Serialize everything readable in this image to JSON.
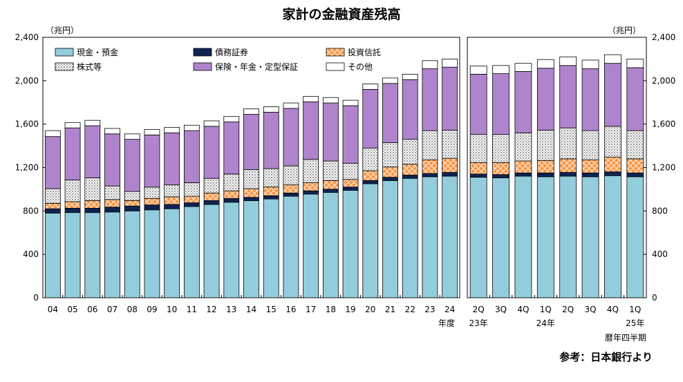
{
  "title": "家計の金融資産残高",
  "source": "参考：日本銀行より",
  "colors": {
    "cash": "#93cddd",
    "bonds": "#0f2454",
    "trusts": "#f79646",
    "stocks": "#d9d9d9",
    "insurance": "#b084cc",
    "other": "#ffffff"
  },
  "chart_data": [
    {
      "type": "bar",
      "stacked": true,
      "unit_label": "（兆円）",
      "axis_caption": "年度",
      "ylim": [
        0,
        2400
      ],
      "yticks": [
        "0",
        "400",
        "800",
        "1,200",
        "1,600",
        "2,000",
        "2,400"
      ],
      "categories": [
        "04",
        "05",
        "06",
        "07",
        "08",
        "09",
        "10",
        "11",
        "12",
        "13",
        "14",
        "15",
        "16",
        "17",
        "18",
        "19",
        "20",
        "21",
        "22",
        "23",
        "24"
      ],
      "series": [
        {
          "name": "現金・預金",
          "key": "cash",
          "values": [
            780,
            785,
            785,
            790,
            800,
            810,
            820,
            840,
            860,
            880,
            895,
            910,
            935,
            955,
            970,
            990,
            1050,
            1080,
            1100,
            1115,
            1120
          ]
        },
        {
          "name": "債務証券",
          "key": "bonds",
          "values": [
            40,
            40,
            40,
            45,
            45,
            45,
            40,
            35,
            35,
            35,
            30,
            30,
            30,
            30,
            30,
            30,
            30,
            30,
            30,
            30,
            35
          ]
        },
        {
          "name": "投資信託",
          "key": "trusts",
          "values": [
            50,
            60,
            70,
            70,
            50,
            60,
            70,
            60,
            70,
            70,
            80,
            80,
            75,
            75,
            80,
            70,
            90,
            95,
            100,
            125,
            130
          ]
        },
        {
          "name": "株式等",
          "key": "stocks",
          "values": [
            135,
            200,
            210,
            125,
            85,
            105,
            110,
            125,
            135,
            155,
            175,
            170,
            175,
            215,
            180,
            150,
            210,
            225,
            230,
            270,
            260
          ]
        },
        {
          "name": "保険・年金・定型保証",
          "key": "insurance",
          "values": [
            480,
            480,
            480,
            480,
            480,
            480,
            480,
            480,
            480,
            480,
            510,
            520,
            530,
            530,
            535,
            530,
            540,
            545,
            550,
            570,
            580
          ]
        },
        {
          "name": "その他",
          "key": "other",
          "values": [
            55,
            50,
            50,
            50,
            50,
            50,
            50,
            50,
            50,
            50,
            50,
            50,
            50,
            50,
            50,
            50,
            50,
            50,
            50,
            75,
            75
          ]
        }
      ]
    },
    {
      "type": "bar",
      "stacked": true,
      "unit_label": "（兆円）",
      "axis_caption": "暦年四半期",
      "ylim": [
        0,
        2400
      ],
      "yticks": [
        "0",
        "400",
        "800",
        "1,200",
        "1,600",
        "2,000",
        "2,400"
      ],
      "categories": [
        "2Q",
        "3Q",
        "4Q",
        "1Q",
        "2Q",
        "3Q",
        "4Q",
        "1Q"
      ],
      "year_labels": [
        {
          "text": "23年",
          "index": 0
        },
        {
          "text": "24年",
          "index": 3
        },
        {
          "text": "25年",
          "index": 7
        }
      ],
      "series": [
        {
          "name": "現金・預金",
          "key": "cash",
          "values": [
            1110,
            1105,
            1120,
            1115,
            1120,
            1115,
            1125,
            1115
          ]
        },
        {
          "name": "債務証券",
          "key": "bonds",
          "values": [
            30,
            30,
            30,
            35,
            35,
            35,
            35,
            35
          ]
        },
        {
          "name": "投資信託",
          "key": "trusts",
          "values": [
            105,
            110,
            110,
            115,
            125,
            120,
            135,
            130
          ]
        },
        {
          "name": "株式等",
          "key": "stocks",
          "values": [
            260,
            260,
            260,
            280,
            285,
            270,
            285,
            260
          ]
        },
        {
          "name": "保険・年金・定型保証",
          "key": "insurance",
          "values": [
            555,
            560,
            565,
            570,
            575,
            570,
            580,
            580
          ]
        },
        {
          "name": "その他",
          "key": "other",
          "values": [
            75,
            75,
            75,
            80,
            80,
            80,
            80,
            80
          ]
        }
      ]
    }
  ]
}
